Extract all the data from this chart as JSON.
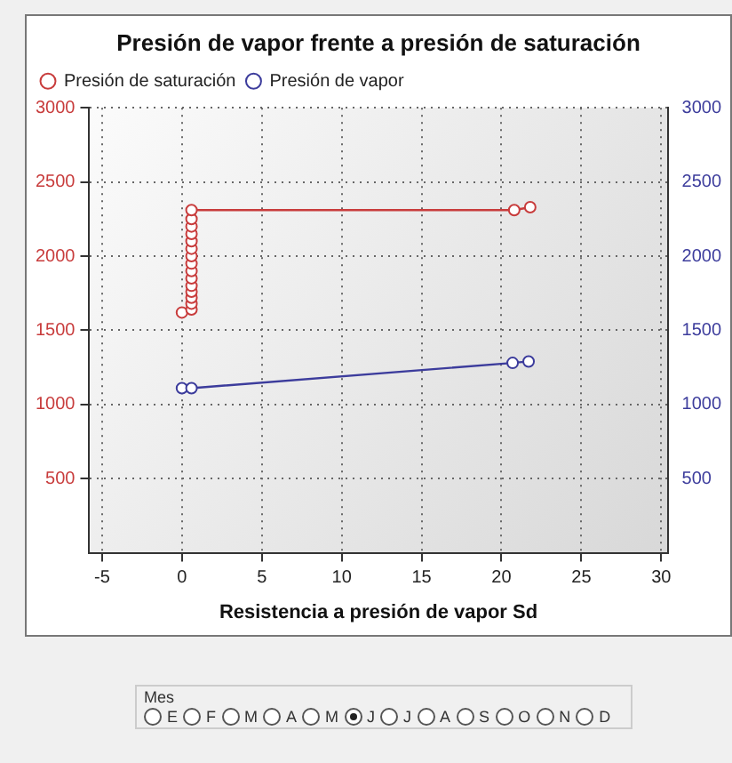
{
  "chart_data": {
    "type": "line",
    "title": "Presión de vapor frente a presión de saturación",
    "xlabel": "Resistencia a presión de vapor Sd",
    "xlim": [
      -5.8,
      30.4
    ],
    "xticks": [
      -5,
      0,
      5,
      10,
      15,
      20,
      25,
      30
    ],
    "ylim": [
      0,
      3000
    ],
    "yticks": [
      500,
      1000,
      1500,
      2000,
      2500,
      3000
    ],
    "y2lim": [
      0,
      3000
    ],
    "y2ticks": [
      500,
      1000,
      1500,
      2000,
      2500,
      3000
    ],
    "grid": true,
    "legend": "top",
    "marker": "circle",
    "line_style": "solid",
    "series": [
      {
        "name": "Presión de saturación",
        "color": "#c83c3c",
        "x": [
          0,
          0.6,
          0.6,
          0.6,
          0.6,
          0.6,
          0.6,
          0.6,
          0.6,
          0.6,
          0.6,
          0.6,
          0.6,
          0.6,
          0.6,
          0.6,
          20.8,
          21.8
        ],
        "values": [
          1620,
          1640,
          1680,
          1720,
          1760,
          1800,
          1850,
          1900,
          1950,
          2000,
          2050,
          2100,
          2150,
          2200,
          2250,
          2310,
          2310,
          2330
        ]
      },
      {
        "name": "Presión de vapor",
        "color": "#3c3c9c",
        "axis": "y2",
        "x": [
          0,
          0.6,
          20.7,
          21.7
        ],
        "values": [
          1110,
          1110,
          1280,
          1290
        ]
      }
    ],
    "annotations": [
      "Mes",
      "E",
      "F",
      "M",
      "A",
      "M",
      "J",
      "J",
      "A",
      "S",
      "O",
      "N",
      "D"
    ]
  }
}
